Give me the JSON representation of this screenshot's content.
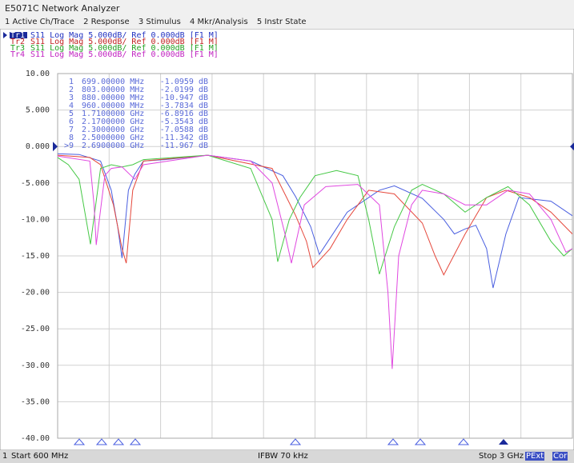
{
  "window": {
    "title": "E5071C Network Analyzer"
  },
  "menu": [
    "1 Active Ch/Trace",
    "2 Response",
    "3 Stimulus",
    "4 Mkr/Analysis",
    "5 Instr State"
  ],
  "traces": [
    {
      "tag": "Tr1",
      "text": "S11 Log Mag 5.000dB/ Ref 0.000dB [F1 M]"
    },
    {
      "tag": "Tr2",
      "text": "S11 Log Mag 5.000dB/ Ref 0.000dB [F1 M]"
    },
    {
      "tag": "Tr3",
      "text": "S11 Log Mag 5.000dB/ Ref 0.000dB [F1 M]"
    },
    {
      "tag": "Tr4",
      "text": "S11 Log Mag 5.000dB/ Ref 0.000dB [F1 M]"
    }
  ],
  "markers": [
    [
      "1",
      "699.00000 MHz",
      "-1.0959 dB"
    ],
    [
      "2",
      "803.00000 MHz",
      "-2.0199 dB"
    ],
    [
      "3",
      "880.00000 MHz",
      "-10.947 dB"
    ],
    [
      "4",
      "960.00000 MHz",
      "-3.7834 dB"
    ],
    [
      "5",
      "1.7100000 GHz",
      "-6.8916 dB"
    ],
    [
      "6",
      "2.1700000 GHz",
      "-5.3543 dB"
    ],
    [
      "7",
      "2.3000000 GHz",
      "-7.0588 dB"
    ],
    [
      "8",
      "2.5000000 GHz",
      "-11.342 dB"
    ],
    [
      ">9",
      "2.6900000 GHz",
      "-11.967 dB"
    ]
  ],
  "footer": {
    "channel": "1",
    "start": "Start 600 MHz",
    "ifbw": "IFBW 70 kHz",
    "stop": "Stop 3 GHz",
    "pext": "PExt",
    "cor": "Cor"
  },
  "chart_data": {
    "type": "line",
    "xlim": [
      0.6,
      3.0
    ],
    "ylim": [
      -40,
      10
    ],
    "yticks": [
      {
        "value": 10,
        "label": "10.00"
      },
      {
        "value": 5,
        "label": "5.000"
      },
      {
        "value": 0,
        "label": "0.000"
      },
      {
        "value": -5,
        "label": "-5.000"
      },
      {
        "value": -10,
        "label": "-10.00"
      },
      {
        "value": -15,
        "label": "-15.00"
      },
      {
        "value": -20,
        "label": "-20.00"
      },
      {
        "value": -25,
        "label": "-25.00"
      },
      {
        "value": -30,
        "label": "-30.00"
      },
      {
        "value": -35,
        "label": "-35.00"
      },
      {
        "value": -40,
        "label": "-40.00"
      }
    ],
    "grid": true,
    "series": [
      {
        "color": "#4a5fe0",
        "x": [
          0.6,
          0.7,
          0.8,
          0.85,
          0.88,
          0.9,
          0.93,
          0.96,
          1.0,
          1.1,
          1.3,
          1.5,
          1.65,
          1.71,
          1.78,
          1.82,
          1.95,
          2.1,
          2.17,
          2.3,
          2.4,
          2.45,
          2.5,
          2.55,
          2.6,
          2.63,
          2.69,
          2.75,
          2.9,
          3.0
        ],
        "values": [
          -1.0,
          -1.1,
          -2.0,
          -6,
          -11,
          -15.3,
          -6,
          -3.8,
          -2,
          -1.8,
          -1.2,
          -2,
          -4,
          -6.9,
          -11,
          -14.8,
          -9,
          -6,
          -5.4,
          -7.1,
          -10,
          -12,
          -11.3,
          -10.8,
          -14,
          -19.4,
          -12,
          -7,
          -7.5,
          -9.5
        ]
      },
      {
        "color": "#e5483c",
        "x": [
          0.6,
          0.75,
          0.8,
          0.86,
          0.9,
          0.92,
          0.95,
          1.0,
          1.3,
          1.6,
          1.71,
          1.76,
          1.79,
          1.87,
          1.95,
          2.05,
          2.17,
          2.3,
          2.36,
          2.4,
          2.5,
          2.6,
          2.69,
          2.8,
          2.9,
          3.0
        ],
        "values": [
          -1.2,
          -1.5,
          -2.5,
          -8,
          -14,
          -16,
          -6,
          -2,
          -1.2,
          -3,
          -9.5,
          -13,
          -16.6,
          -14,
          -10,
          -6,
          -6.5,
          -10.5,
          -15,
          -17.6,
          -12,
          -7,
          -6,
          -7,
          -9,
          -12
        ]
      },
      {
        "color": "#45c845",
        "x": [
          0.6,
          0.65,
          0.7,
          0.753,
          0.8,
          0.85,
          0.9,
          0.95,
          1.0,
          1.3,
          1.5,
          1.6,
          1.626,
          1.68,
          1.73,
          1.8,
          1.9,
          2.0,
          2.05,
          2.1,
          2.17,
          2.25,
          2.3,
          2.4,
          2.5,
          2.6,
          2.7,
          2.8,
          2.9,
          2.96,
          3.0
        ],
        "values": [
          -1.5,
          -2.5,
          -4.5,
          -13.4,
          -3,
          -2.5,
          -2.8,
          -2.5,
          -1.8,
          -1.2,
          -3,
          -10,
          -15.8,
          -10,
          -7,
          -4,
          -3.3,
          -4,
          -10,
          -17.5,
          -11,
          -6,
          -5.2,
          -6.5,
          -9,
          -7,
          -5.5,
          -8,
          -13,
          -15,
          -14
        ]
      },
      {
        "color": "#e048e0",
        "x": [
          0.6,
          0.75,
          0.77,
          0.78,
          0.82,
          0.85,
          0.9,
          0.96,
          1.0,
          1.3,
          1.5,
          1.6,
          1.66,
          1.69,
          1.75,
          1.85,
          2.0,
          2.1,
          2.14,
          2.16,
          2.19,
          2.25,
          2.3,
          2.4,
          2.5,
          2.6,
          2.7,
          2.8,
          2.9,
          2.97,
          3.0
        ],
        "values": [
          -1.3,
          -2,
          -8,
          -13.5,
          -4,
          -3,
          -2.8,
          -4.5,
          -2.5,
          -1.2,
          -2,
          -5,
          -12,
          -16,
          -8,
          -5.5,
          -5.2,
          -8,
          -20,
          -30.5,
          -15,
          -8,
          -6,
          -6.5,
          -8,
          -8,
          -6,
          -6.5,
          -10,
          -14.5,
          -14
        ]
      }
    ]
  }
}
